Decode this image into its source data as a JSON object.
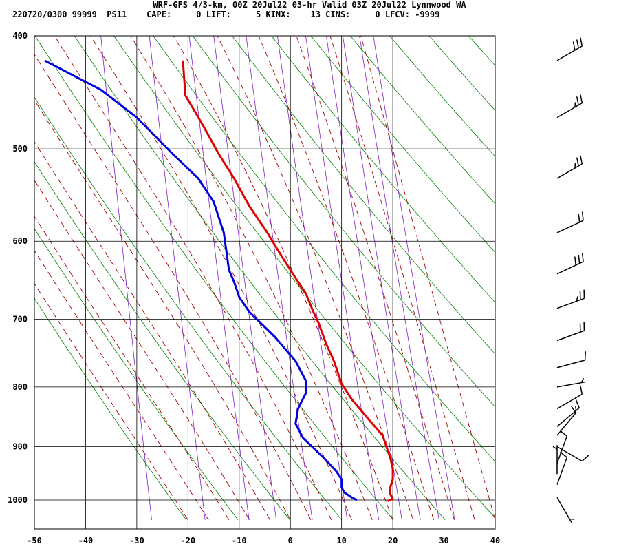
{
  "chart_data": {
    "type": "line",
    "title": "WRF-GFS 4/3-km, 00Z 20Jul22 03-hr Valid 03Z 20Jul22 Lynnwood WA",
    "subtitle": "220720/0300 99999  PS11    CAPE:     0 LIFT:     5 KINX:    13 CINS:     0 LFCV: -9999",
    "x_ticks": [
      -50,
      -40,
      -30,
      -20,
      -10,
      0,
      10,
      20,
      30,
      40
    ],
    "y_ticks": [
      400,
      500,
      600,
      700,
      800,
      900,
      1000
    ],
    "xlim": [
      -50,
      40
    ],
    "ylim": [
      1040,
      400
    ],
    "yscale": "log",
    "grid": true,
    "series": [
      {
        "color": "#e00000",
        "points": [
          [
            19,
            1002
          ],
          [
            20,
            998
          ],
          [
            19.5,
            988
          ],
          [
            19.5,
            975
          ],
          [
            20,
            960
          ],
          [
            20,
            940
          ],
          [
            19.5,
            920
          ],
          [
            18,
            880
          ],
          [
            15.5,
            855
          ],
          [
            12,
            820
          ],
          [
            10,
            795
          ],
          [
            8.5,
            760
          ],
          [
            7,
            735
          ],
          [
            5.5,
            705
          ],
          [
            4.5,
            690
          ],
          [
            3,
            665
          ],
          [
            0.5,
            640
          ],
          [
            -2,
            615
          ],
          [
            -4.5,
            590
          ],
          [
            -8,
            560
          ],
          [
            -11,
            530
          ],
          [
            -14,
            505
          ],
          [
            -17,
            478
          ],
          [
            -20.5,
            450
          ],
          [
            -21,
            420
          ]
        ]
      },
      {
        "color": "#0000e0",
        "points": [
          [
            13,
            1000
          ],
          [
            12,
            995
          ],
          [
            10.5,
            985
          ],
          [
            10,
            975
          ],
          [
            10,
            960
          ],
          [
            9,
            945
          ],
          [
            6.5,
            920
          ],
          [
            2.5,
            885
          ],
          [
            1,
            860
          ],
          [
            1.5,
            835
          ],
          [
            3,
            810
          ],
          [
            3,
            790
          ],
          [
            1,
            760
          ],
          [
            -3,
            725
          ],
          [
            -8,
            690
          ],
          [
            -10,
            670
          ],
          [
            -11,
            650
          ],
          [
            -12,
            635
          ],
          [
            -13,
            590
          ],
          [
            -15,
            555
          ],
          [
            -18,
            530
          ],
          [
            -23,
            505
          ],
          [
            -30,
            470
          ],
          [
            -37,
            445
          ],
          [
            -48,
            420
          ]
        ]
      }
    ],
    "wind_barbs": [
      {
        "p": 420,
        "dir": 240,
        "kt": 30
      },
      {
        "p": 470,
        "dir": 240,
        "kt": 25
      },
      {
        "p": 530,
        "dir": 240,
        "kt": 25
      },
      {
        "p": 590,
        "dir": 245,
        "kt": 20
      },
      {
        "p": 640,
        "dir": 245,
        "kt": 30
      },
      {
        "p": 685,
        "dir": 250,
        "kt": 25
      },
      {
        "p": 730,
        "dir": 250,
        "kt": 20
      },
      {
        "p": 770,
        "dir": 255,
        "kt": 10
      },
      {
        "p": 800,
        "dir": 260,
        "kt": 5
      },
      {
        "p": 835,
        "dir": 240,
        "kt": 10
      },
      {
        "p": 865,
        "dir": 230,
        "kt": 15
      },
      {
        "p": 880,
        "dir": 220,
        "kt": 10
      },
      {
        "p": 900,
        "dir": 300,
        "kt": 10
      },
      {
        "p": 930,
        "dir": 200,
        "kt": 10
      },
      {
        "p": 950,
        "dir": 180,
        "kt": 5
      },
      {
        "p": 970,
        "dir": 200,
        "kt": 10
      },
      {
        "p": 995,
        "dir": 330,
        "kt": 5
      }
    ],
    "colors": {
      "temperature": "#e00000",
      "dewpoint": "#0000e0",
      "dry_adiabat": "#008000",
      "moist_adiabat": "#a00000",
      "mixing_ratio": "#8020c0",
      "grid": "#000000"
    }
  }
}
